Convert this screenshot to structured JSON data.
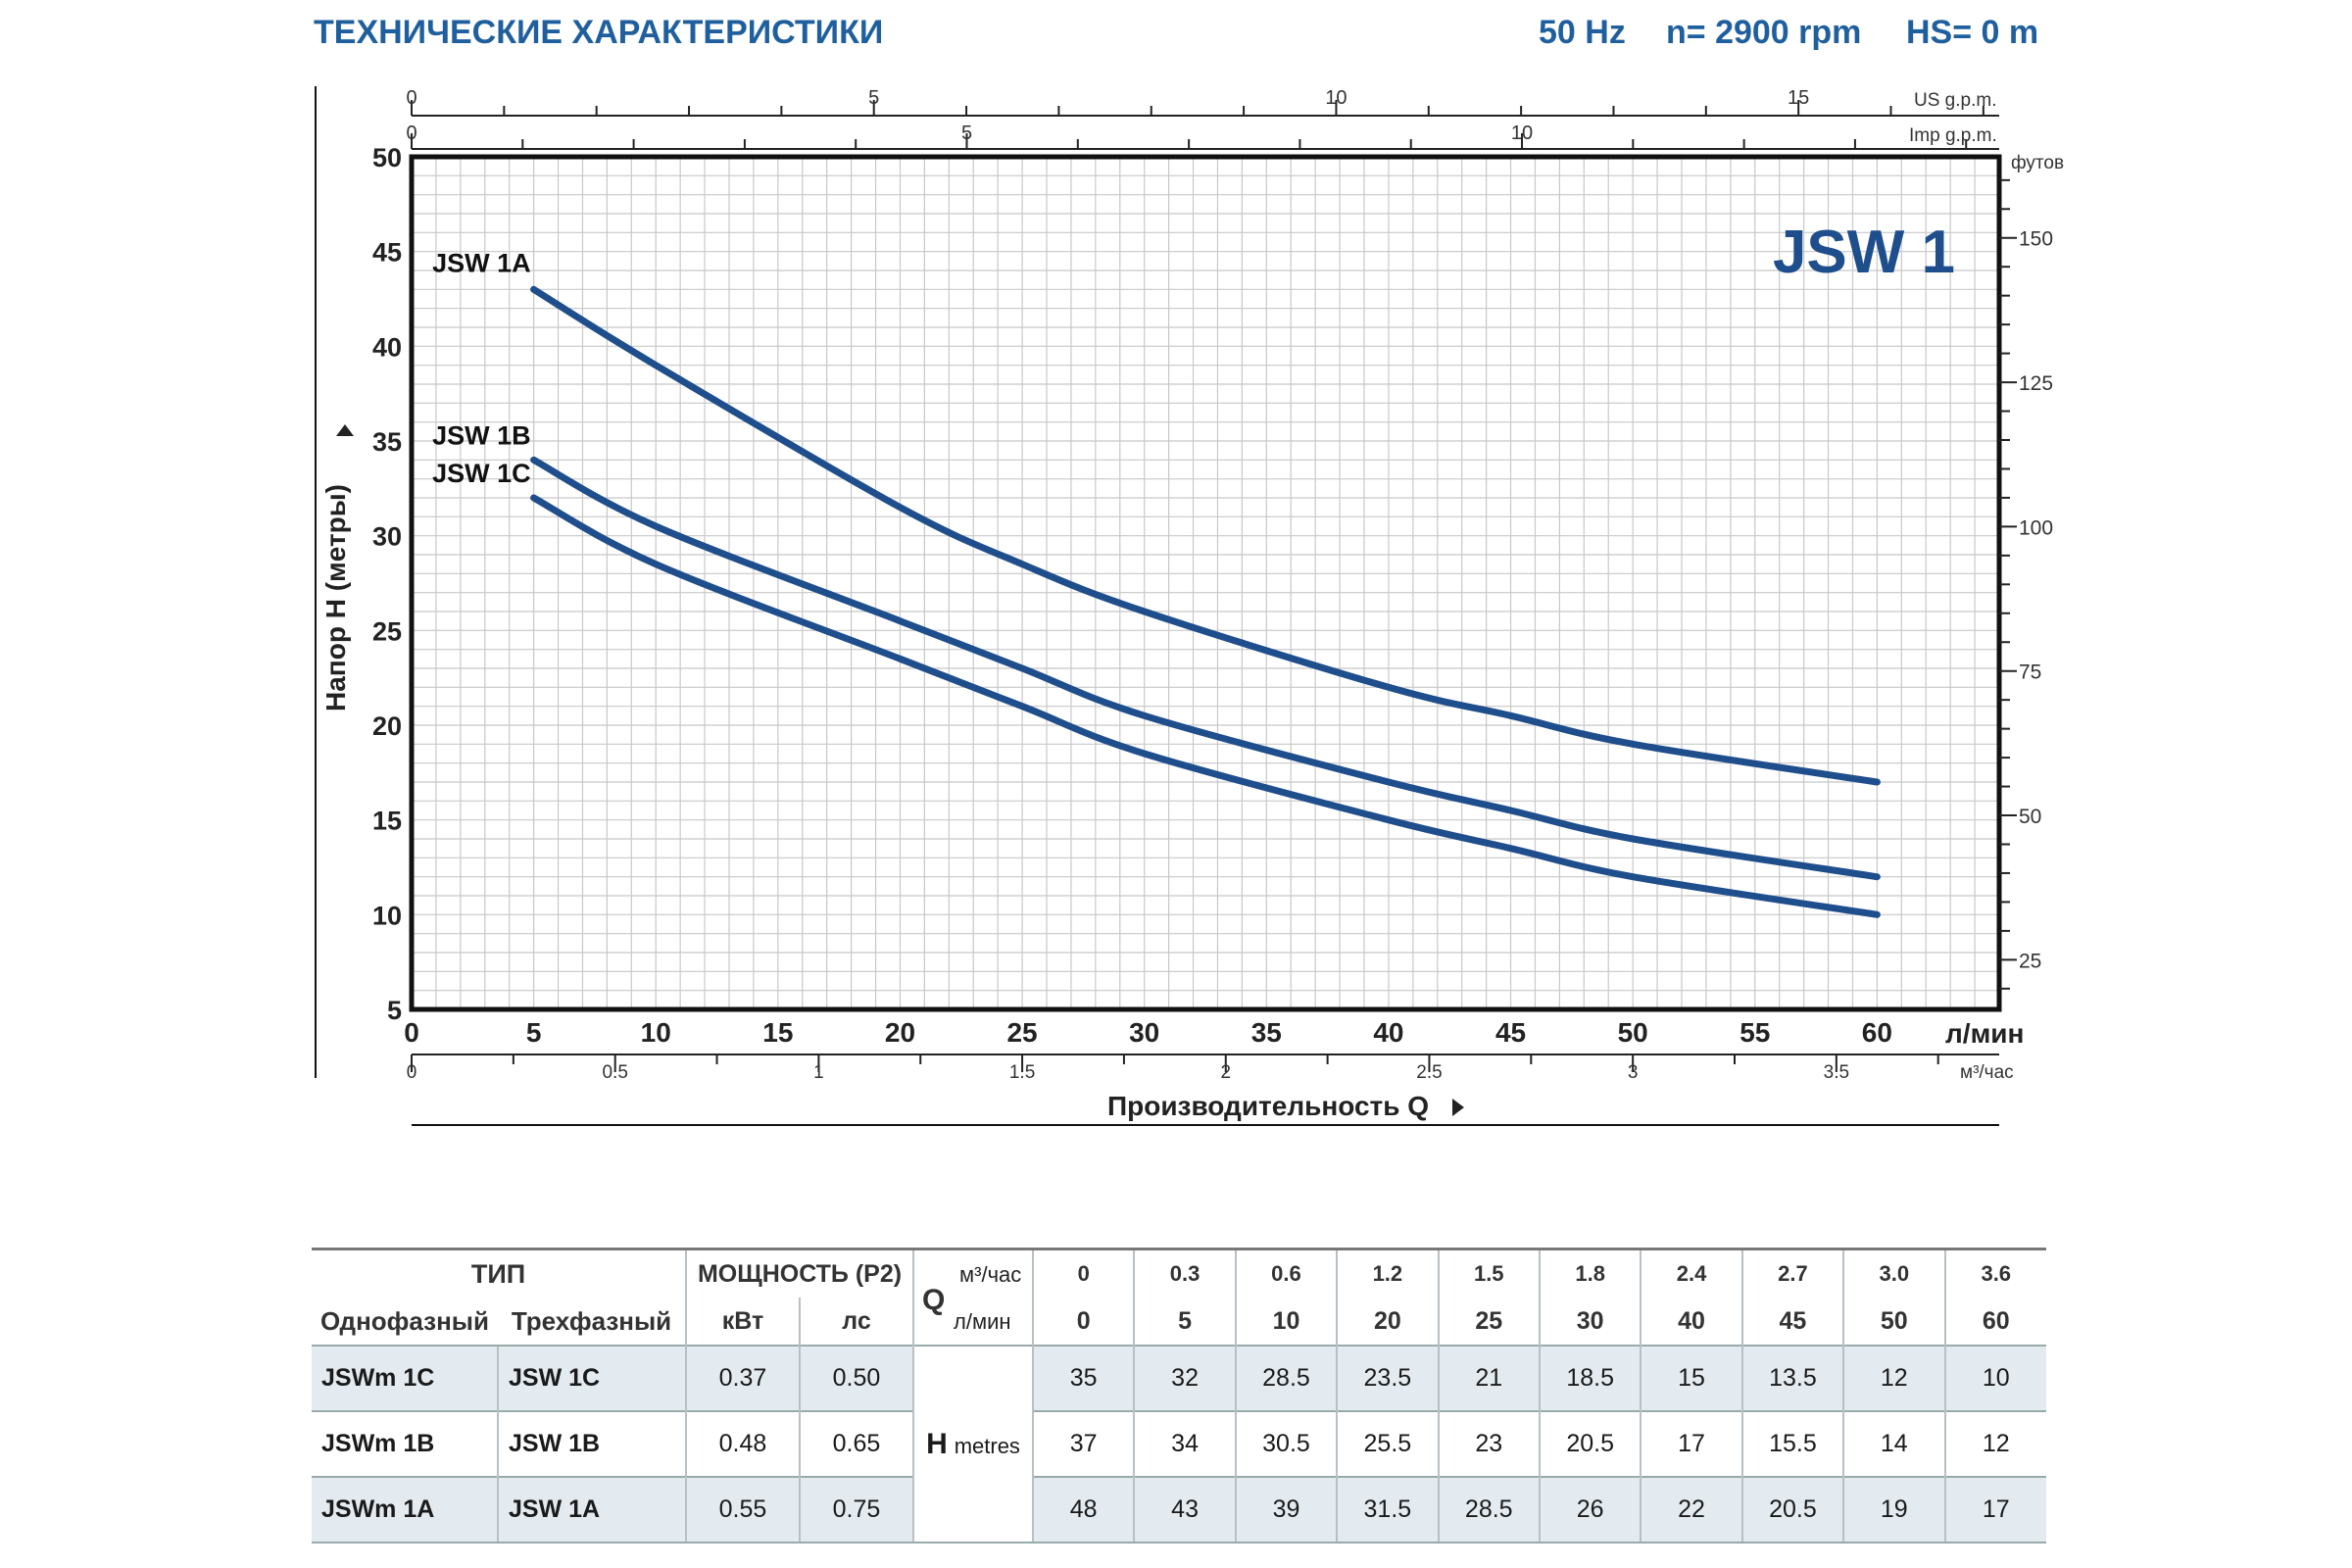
{
  "header": {
    "title": "ТЕХНИЧЕСКИЕ ХАРАКТЕРИСТИКИ",
    "freq": "50 Hz",
    "speed": "n= 2900 rpm",
    "hs": "HS= 0 m"
  },
  "chart_data": {
    "type": "line",
    "model_label": "JSW 1",
    "xlabel": "Производительность Q",
    "ylabel": "Напор H (метры)",
    "x_unit_primary": "л/мин",
    "x_unit_m3h": "м³/час",
    "x_unit_us": "US g.p.m.",
    "x_unit_imp": "Imp g.p.m.",
    "y_unit_right": "футов",
    "xlim": [
      0,
      65
    ],
    "ylim": [
      5,
      50
    ],
    "x_ticks": [
      "0",
      "5",
      "10",
      "15",
      "20",
      "25",
      "30",
      "35",
      "40",
      "45",
      "50",
      "55",
      "60"
    ],
    "y_ticks": [
      "5",
      "10",
      "15",
      "20",
      "25",
      "30",
      "35",
      "40",
      "45",
      "50"
    ],
    "m3h_ticks": [
      "0",
      "0.5",
      "1",
      "1.5",
      "2",
      "2.5",
      "3",
      "3.5"
    ],
    "us_gpm_ticks": [
      "0",
      "5",
      "10",
      "15"
    ],
    "imp_gpm_ticks": [
      "0",
      "5",
      "10"
    ],
    "feet_ticks": [
      "25",
      "50",
      "75",
      "100",
      "125",
      "150"
    ],
    "grid": true,
    "series": [
      {
        "name": "JSW 1A",
        "color": "#1f4e8c",
        "points": [
          [
            5,
            43
          ],
          [
            10,
            39
          ],
          [
            20,
            31.5
          ],
          [
            25,
            28.5
          ],
          [
            30,
            26
          ],
          [
            40,
            22
          ],
          [
            45,
            20.5
          ],
          [
            50,
            19
          ],
          [
            60,
            17
          ]
        ]
      },
      {
        "name": "JSW 1B",
        "color": "#1f4e8c",
        "points": [
          [
            5,
            34
          ],
          [
            10,
            30.5
          ],
          [
            20,
            25.5
          ],
          [
            25,
            23
          ],
          [
            30,
            20.5
          ],
          [
            40,
            17
          ],
          [
            45,
            15.5
          ],
          [
            50,
            14
          ],
          [
            60,
            12
          ]
        ]
      },
      {
        "name": "JSW 1C",
        "color": "#1f4e8c",
        "points": [
          [
            5,
            32
          ],
          [
            10,
            28.5
          ],
          [
            20,
            23.5
          ],
          [
            25,
            21
          ],
          [
            30,
            18.5
          ],
          [
            40,
            15
          ],
          [
            45,
            13.5
          ],
          [
            50,
            12
          ],
          [
            60,
            10
          ]
        ]
      }
    ]
  },
  "table": {
    "type_header": "ТИП",
    "single_phase_header": "Однофазный",
    "three_phase_header": "Трехфазный",
    "power_header": "МОЩНОСТЬ (P2)",
    "kw_header": "кВт",
    "hp_header": "лс",
    "q_symbol": "Q",
    "q_unit_m3h": "м³/час",
    "q_unit_lpm": "л/мин",
    "h_symbol": "H",
    "h_unit": "metres",
    "flow_m3h": [
      "0",
      "0.3",
      "0.6",
      "1.2",
      "1.5",
      "1.8",
      "2.4",
      "2.7",
      "3.0",
      "3.6"
    ],
    "flow_lpm": [
      "0",
      "5",
      "10",
      "20",
      "25",
      "30",
      "40",
      "45",
      "50",
      "60"
    ],
    "rows": [
      {
        "single": "JSWm 1C",
        "three": "JSW 1C",
        "kw": "0.37",
        "hp": "0.50",
        "heads": [
          "35",
          "32",
          "28.5",
          "23.5",
          "21",
          "18.5",
          "15",
          "13.5",
          "12",
          "10"
        ]
      },
      {
        "single": "JSWm 1B",
        "three": "JSW 1B",
        "kw": "0.48",
        "hp": "0.65",
        "heads": [
          "37",
          "34",
          "30.5",
          "25.5",
          "23",
          "20.5",
          "17",
          "15.5",
          "14",
          "12"
        ]
      },
      {
        "single": "JSWm 1A",
        "three": "JSW 1A",
        "kw": "0.55",
        "hp": "0.75",
        "heads": [
          "48",
          "43",
          "39",
          "31.5",
          "28.5",
          "26",
          "22",
          "20.5",
          "19",
          "17"
        ]
      }
    ]
  }
}
